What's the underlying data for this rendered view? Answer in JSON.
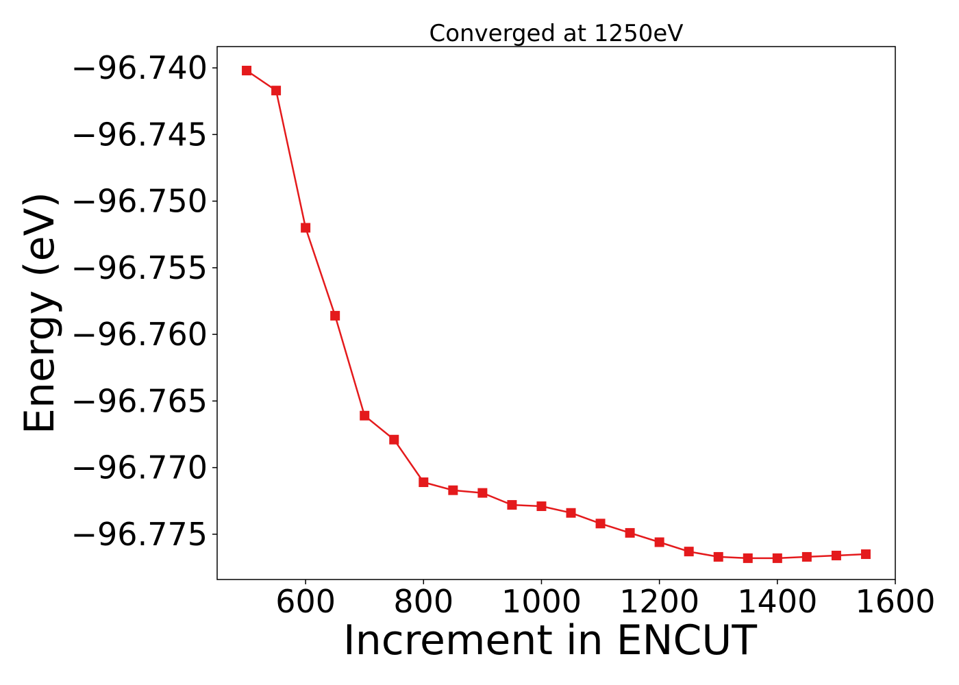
{
  "chart_data": {
    "type": "line",
    "title": "Converged at 1250eV",
    "xlabel": "Increment in ENCUT",
    "ylabel": "Energy (eV)",
    "xlim": [
      450,
      1600
    ],
    "ylim": [
      -96.7784,
      -96.7384
    ],
    "xticks": [
      600,
      800,
      1000,
      1200,
      1400,
      1600
    ],
    "xtick_labels": [
      "600",
      "800",
      "1000",
      "1200",
      "1400",
      "1600"
    ],
    "yticks": [
      -96.74,
      -96.745,
      -96.75,
      -96.755,
      -96.76,
      -96.765,
      -96.77,
      -96.775
    ],
    "ytick_labels": [
      "−96.740",
      "−96.745",
      "−96.750",
      "−96.755",
      "−96.760",
      "−96.765",
      "−96.770",
      "−96.775"
    ],
    "grid": false,
    "series": [
      {
        "marker": "square",
        "color": "#e41a1c",
        "x": [
          500,
          550,
          600,
          650,
          700,
          750,
          800,
          850,
          900,
          950,
          1000,
          1050,
          1100,
          1150,
          1200,
          1250,
          1300,
          1350,
          1400,
          1450,
          1500,
          1550
        ],
        "y": [
          -96.7402,
          -96.7417,
          -96.752,
          -96.7586,
          -96.7661,
          -96.7679,
          -96.7711,
          -96.7717,
          -96.7719,
          -96.7728,
          -96.7729,
          -96.7734,
          -96.7742,
          -96.7749,
          -96.7756,
          -96.7763,
          -96.7767,
          -96.7768,
          -96.7768,
          -96.7767,
          -96.7766,
          -96.7765
        ]
      }
    ]
  }
}
